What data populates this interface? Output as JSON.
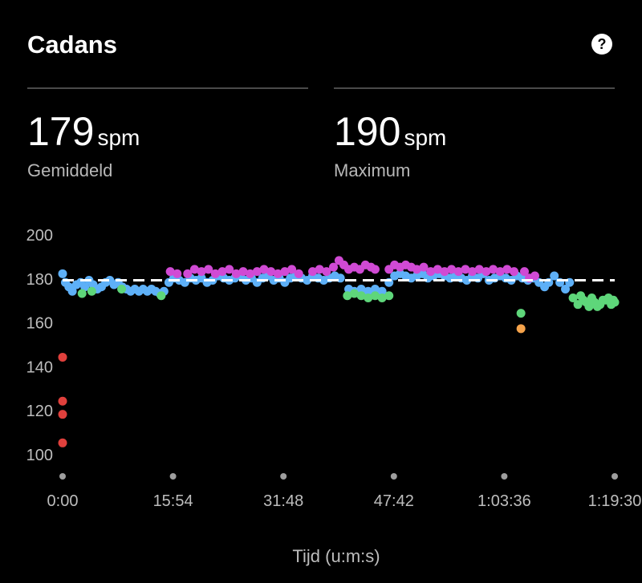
{
  "header": {
    "title": "Cadans",
    "help_icon": "question-circle-icon"
  },
  "stats": [
    {
      "value": "179",
      "unit": "spm",
      "label": "Gemiddeld"
    },
    {
      "value": "190",
      "unit": "spm",
      "label": "Maximum"
    }
  ],
  "chart_data": {
    "type": "scatter",
    "title": "Cadans",
    "xlabel": "Tijd (u:m:s)",
    "ylabel": "",
    "ylim": [
      90,
      205
    ],
    "yticks": [
      100,
      120,
      140,
      160,
      180,
      200
    ],
    "x_tick_labels": [
      "0:00",
      "15:54",
      "31:48",
      "47:42",
      "1:03:36",
      "1:19:30"
    ],
    "x_range_minutes": [
      0,
      79.5
    ],
    "average_line": 179,
    "grid": false,
    "colors": {
      "red": "#e0403c",
      "orange": "#f5a34b",
      "green": "#5ed67a",
      "blue": "#5eb0f7",
      "purple": "#d04ad4",
      "average_line": "#ffffff"
    },
    "series": [
      {
        "color_key": "blue",
        "values": [
          [
            0.0,
            182
          ],
          [
            0.4,
            178
          ],
          [
            0.9,
            176
          ],
          [
            1.4,
            174
          ],
          [
            2.0,
            177
          ],
          [
            2.6,
            178
          ],
          [
            3.2,
            176
          ],
          [
            3.8,
            179
          ],
          [
            4.4,
            177
          ],
          [
            5.0,
            175
          ],
          [
            5.6,
            176
          ],
          [
            6.2,
            178
          ],
          [
            6.8,
            179
          ],
          [
            7.4,
            177
          ],
          [
            8.0,
            178
          ],
          [
            8.6,
            176
          ],
          [
            9.2,
            175
          ],
          [
            9.8,
            174
          ],
          [
            10.4,
            175
          ],
          [
            11.0,
            174
          ],
          [
            11.6,
            175
          ],
          [
            12.2,
            174
          ],
          [
            12.8,
            175
          ],
          [
            13.4,
            174
          ],
          [
            14.0,
            173
          ],
          [
            14.6,
            174
          ],
          [
            15.3,
            178
          ],
          [
            16.0,
            180
          ],
          [
            16.8,
            179
          ],
          [
            17.6,
            178
          ],
          [
            18.4,
            180
          ],
          [
            19.2,
            179
          ],
          [
            20.0,
            180
          ],
          [
            20.8,
            178
          ],
          [
            21.6,
            179
          ],
          [
            22.4,
            181
          ],
          [
            23.2,
            180
          ],
          [
            24.0,
            179
          ],
          [
            24.8,
            180
          ],
          [
            25.6,
            181
          ],
          [
            26.4,
            179
          ],
          [
            27.2,
            180
          ],
          [
            28.0,
            178
          ],
          [
            28.8,
            180
          ],
          [
            29.6,
            181
          ],
          [
            30.4,
            179
          ],
          [
            31.2,
            180
          ],
          [
            32.0,
            178
          ],
          [
            32.8,
            180
          ],
          [
            33.6,
            181
          ],
          [
            34.4,
            180
          ],
          [
            35.2,
            179
          ],
          [
            36.0,
            181
          ],
          [
            36.8,
            180
          ],
          [
            37.6,
            179
          ],
          [
            38.4,
            180
          ],
          [
            39.2,
            181
          ],
          [
            40.0,
            180
          ],
          [
            41.2,
            175
          ],
          [
            42.0,
            174
          ],
          [
            43.0,
            175
          ],
          [
            44.0,
            174
          ],
          [
            45.0,
            175
          ],
          [
            46.0,
            174
          ],
          [
            47.0,
            178
          ],
          [
            47.8,
            181
          ],
          [
            48.6,
            182
          ],
          [
            49.4,
            181
          ],
          [
            50.2,
            180
          ],
          [
            51.0,
            181
          ],
          [
            51.8,
            182
          ],
          [
            52.6,
            180
          ],
          [
            53.4,
            181
          ],
          [
            54.2,
            182
          ],
          [
            55.0,
            181
          ],
          [
            55.8,
            180
          ],
          [
            56.6,
            181
          ],
          [
            57.4,
            180
          ],
          [
            58.2,
            179
          ],
          [
            59.0,
            181
          ],
          [
            59.8,
            180
          ],
          [
            60.6,
            182
          ],
          [
            61.4,
            179
          ],
          [
            62.2,
            180
          ],
          [
            63.0,
            181
          ],
          [
            63.8,
            180
          ],
          [
            64.6,
            179
          ],
          [
            65.4,
            181
          ],
          [
            66.2,
            180
          ],
          [
            67.0,
            179
          ],
          [
            67.8,
            180
          ],
          [
            68.6,
            178
          ],
          [
            69.4,
            176
          ],
          [
            70.0,
            178
          ],
          [
            70.8,
            181
          ],
          [
            71.6,
            178
          ],
          [
            72.4,
            175
          ],
          [
            73.0,
            178
          ]
        ]
      },
      {
        "color_key": "purple",
        "values": [
          [
            15.5,
            183
          ],
          [
            16.5,
            182
          ],
          [
            18.0,
            182
          ],
          [
            19.0,
            184
          ],
          [
            20.0,
            183
          ],
          [
            21.0,
            184
          ],
          [
            22.0,
            182
          ],
          [
            23.0,
            183
          ],
          [
            24.0,
            184
          ],
          [
            25.0,
            182
          ],
          [
            26.0,
            183
          ],
          [
            27.0,
            182
          ],
          [
            28.0,
            183
          ],
          [
            29.0,
            184
          ],
          [
            30.0,
            183
          ],
          [
            31.0,
            182
          ],
          [
            32.0,
            183
          ],
          [
            33.0,
            184
          ],
          [
            34.0,
            182
          ],
          [
            36.0,
            183
          ],
          [
            37.0,
            184
          ],
          [
            38.0,
            183
          ],
          [
            39.0,
            185
          ],
          [
            39.8,
            188
          ],
          [
            40.5,
            186
          ],
          [
            41.2,
            184
          ],
          [
            42.0,
            185
          ],
          [
            42.8,
            184
          ],
          [
            43.6,
            186
          ],
          [
            44.4,
            185
          ],
          [
            45.0,
            184
          ],
          [
            47.0,
            184
          ],
          [
            47.8,
            186
          ],
          [
            48.6,
            185
          ],
          [
            49.4,
            186
          ],
          [
            50.2,
            185
          ],
          [
            51.0,
            184
          ],
          [
            52.0,
            185
          ],
          [
            53.0,
            183
          ],
          [
            54.0,
            184
          ],
          [
            55.0,
            183
          ],
          [
            56.0,
            184
          ],
          [
            57.0,
            183
          ],
          [
            58.0,
            184
          ],
          [
            59.0,
            183
          ],
          [
            60.0,
            184
          ],
          [
            61.0,
            183
          ],
          [
            62.0,
            184
          ],
          [
            63.0,
            183
          ],
          [
            64.0,
            184
          ],
          [
            65.0,
            183
          ],
          [
            66.5,
            183
          ],
          [
            67.2,
            180
          ],
          [
            68.0,
            181
          ]
        ]
      },
      {
        "color_key": "green",
        "values": [
          [
            2.8,
            173
          ],
          [
            4.2,
            174
          ],
          [
            8.5,
            175
          ],
          [
            14.2,
            172
          ],
          [
            41.0,
            172
          ],
          [
            42.0,
            173
          ],
          [
            43.0,
            172
          ],
          [
            44.0,
            171
          ],
          [
            45.0,
            172
          ],
          [
            46.0,
            171
          ],
          [
            47.0,
            172
          ],
          [
            66.0,
            164
          ],
          [
            73.5,
            171
          ],
          [
            74.2,
            168
          ],
          [
            75.0,
            170
          ],
          [
            75.8,
            167
          ],
          [
            76.6,
            169
          ],
          [
            77.4,
            168
          ],
          [
            78.2,
            170
          ],
          [
            79.0,
            168
          ],
          [
            79.5,
            169
          ],
          [
            74.6,
            172
          ],
          [
            75.4,
            169
          ],
          [
            76.2,
            171
          ],
          [
            77.0,
            167
          ],
          [
            77.8,
            170
          ],
          [
            78.6,
            171
          ],
          [
            79.3,
            170
          ]
        ]
      },
      {
        "color_key": "orange",
        "values": [
          [
            66.0,
            157
          ]
        ]
      },
      {
        "color_key": "red",
        "values": [
          [
            0.0,
            144
          ],
          [
            0.0,
            124
          ],
          [
            0.0,
            118
          ],
          [
            0.0,
            105
          ]
        ]
      }
    ]
  }
}
